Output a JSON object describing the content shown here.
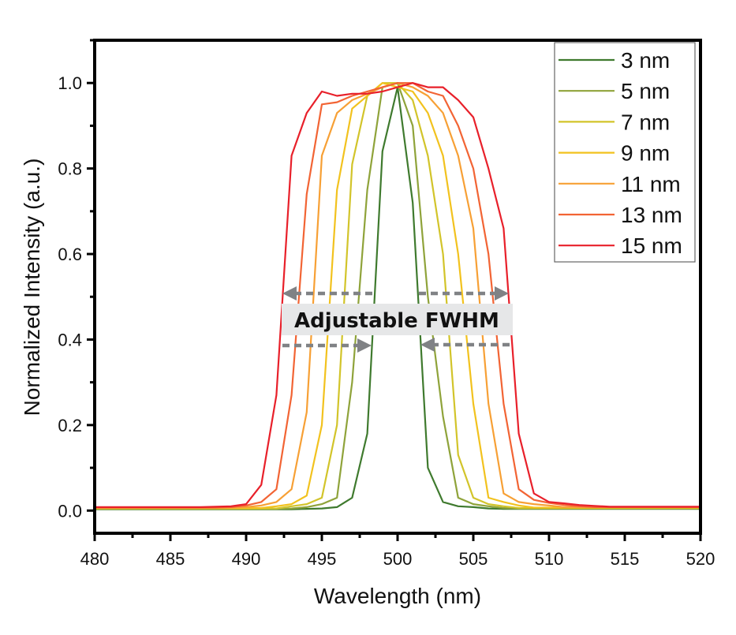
{
  "chart_data": {
    "type": "line",
    "title": "",
    "xlabel": "Wavelength (nm)",
    "ylabel": "Normalized Intensity (a.u.)",
    "xlim": [
      480,
      520
    ],
    "ylim": [
      -0.053,
      1.1
    ],
    "xticks": [
      480,
      485,
      490,
      495,
      500,
      505,
      510,
      515,
      520
    ],
    "yticks": [
      "0.0",
      "0.2",
      "0.4",
      "0.6",
      "0.8",
      "1.0"
    ],
    "grid": false,
    "legend_position": "top-right",
    "annotation": "Adjustable FWHM",
    "x": [
      480,
      481,
      482,
      483,
      484,
      485,
      486,
      487,
      488,
      489,
      490,
      491,
      492,
      493,
      494,
      495,
      496,
      497,
      498,
      499,
      500,
      501,
      502,
      503,
      504,
      505,
      506,
      507,
      508,
      509,
      510,
      511,
      512,
      513,
      514,
      515,
      516,
      517,
      518,
      519,
      520
    ],
    "series": [
      {
        "name": "3 nm",
        "color": "#3f7a2e",
        "values": [
          0.003,
          0.003,
          0.003,
          0.003,
          0.003,
          0.003,
          0.003,
          0.003,
          0.003,
          0.003,
          0.003,
          0.003,
          0.003,
          0.003,
          0.004,
          0.005,
          0.008,
          0.03,
          0.18,
          0.84,
          0.99,
          0.72,
          0.1,
          0.02,
          0.01,
          0.008,
          0.005,
          0.004,
          0.004,
          0.004,
          0.004,
          0.004,
          0.004,
          0.004,
          0.004,
          0.004,
          0.004,
          0.004,
          0.004,
          0.004,
          0.004
        ]
      },
      {
        "name": "5 nm",
        "color": "#8fa33a",
        "values": [
          0.004,
          0.004,
          0.004,
          0.004,
          0.004,
          0.004,
          0.004,
          0.004,
          0.004,
          0.004,
          0.004,
          0.004,
          0.004,
          0.005,
          0.008,
          0.015,
          0.03,
          0.3,
          0.75,
          0.99,
          1.0,
          0.9,
          0.5,
          0.22,
          0.03,
          0.015,
          0.01,
          0.006,
          0.005,
          0.005,
          0.005,
          0.005,
          0.005,
          0.005,
          0.005,
          0.005,
          0.005,
          0.005,
          0.005,
          0.005,
          0.005
        ]
      },
      {
        "name": "7 nm",
        "color": "#d2c42a",
        "values": [
          0.005,
          0.005,
          0.005,
          0.005,
          0.005,
          0.005,
          0.005,
          0.005,
          0.005,
          0.005,
          0.005,
          0.005,
          0.005,
          0.01,
          0.015,
          0.03,
          0.2,
          0.81,
          0.97,
          1.0,
          1.0,
          0.96,
          0.83,
          0.6,
          0.13,
          0.03,
          0.015,
          0.01,
          0.006,
          0.006,
          0.006,
          0.006,
          0.006,
          0.006,
          0.006,
          0.006,
          0.006,
          0.006,
          0.006,
          0.006,
          0.006
        ]
      },
      {
        "name": "9 nm",
        "color": "#f2c21e",
        "values": [
          0.006,
          0.006,
          0.006,
          0.006,
          0.006,
          0.006,
          0.006,
          0.006,
          0.006,
          0.006,
          0.006,
          0.006,
          0.01,
          0.015,
          0.035,
          0.2,
          0.75,
          0.94,
          0.97,
          1.0,
          0.99,
          0.98,
          0.93,
          0.83,
          0.6,
          0.25,
          0.03,
          0.02,
          0.012,
          0.007,
          0.007,
          0.007,
          0.007,
          0.007,
          0.007,
          0.007,
          0.007,
          0.007,
          0.007,
          0.007,
          0.007
        ]
      },
      {
        "name": "11 nm",
        "color": "#f7a035",
        "values": [
          0.007,
          0.007,
          0.007,
          0.007,
          0.007,
          0.007,
          0.007,
          0.007,
          0.007,
          0.007,
          0.008,
          0.012,
          0.02,
          0.05,
          0.23,
          0.83,
          0.93,
          0.96,
          0.975,
          0.99,
          1.0,
          0.99,
          0.97,
          0.93,
          0.83,
          0.66,
          0.25,
          0.04,
          0.02,
          0.015,
          0.012,
          0.008,
          0.008,
          0.008,
          0.008,
          0.008,
          0.008,
          0.008,
          0.008,
          0.008,
          0.008
        ]
      },
      {
        "name": "13 nm",
        "color": "#f26434",
        "values": [
          0.007,
          0.007,
          0.007,
          0.007,
          0.007,
          0.007,
          0.007,
          0.007,
          0.007,
          0.008,
          0.012,
          0.02,
          0.05,
          0.27,
          0.74,
          0.95,
          0.955,
          0.97,
          0.98,
          0.99,
          1.0,
          1.0,
          0.98,
          0.97,
          0.9,
          0.8,
          0.6,
          0.25,
          0.05,
          0.025,
          0.018,
          0.013,
          0.01,
          0.008,
          0.008,
          0.008,
          0.008,
          0.008,
          0.008,
          0.008,
          0.008
        ]
      },
      {
        "name": "15 nm",
        "color": "#e8202a",
        "values": [
          0.008,
          0.008,
          0.008,
          0.008,
          0.008,
          0.008,
          0.008,
          0.008,
          0.009,
          0.01,
          0.015,
          0.06,
          0.27,
          0.83,
          0.93,
          0.98,
          0.97,
          0.975,
          0.975,
          0.98,
          0.99,
          1.0,
          0.99,
          0.99,
          0.96,
          0.92,
          0.8,
          0.66,
          0.18,
          0.04,
          0.02,
          0.017,
          0.013,
          0.011,
          0.009,
          0.009,
          0.009,
          0.009,
          0.009,
          0.009,
          0.009
        ]
      }
    ]
  },
  "colors": {
    "arrow": "#808285",
    "annotation_bg": "#e6e7e8"
  }
}
